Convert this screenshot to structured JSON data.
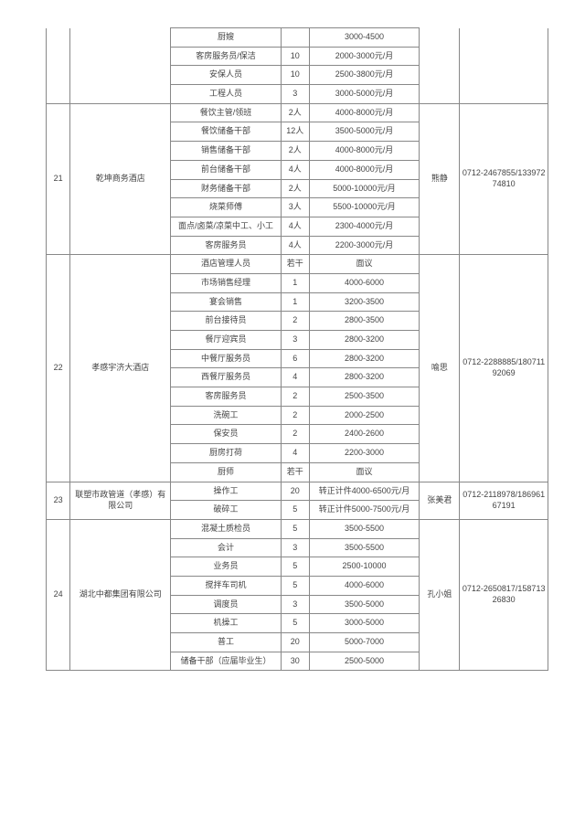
{
  "groups": [
    {
      "idx": "",
      "company": "",
      "contact": "",
      "phone": "",
      "idx_open_top": true,
      "company_open_top": true,
      "contact_open_top": true,
      "phone_open_top": true,
      "rows": [
        {
          "pos": "厨嫂",
          "qty": "",
          "salary": "3000-4500"
        },
        {
          "pos": "客房服务员/保洁",
          "qty": "10",
          "salary": "2000-3000元/月"
        },
        {
          "pos": "安保人员",
          "qty": "10",
          "salary": "2500-3800元/月"
        },
        {
          "pos": "工程人员",
          "qty": "3",
          "salary": "3000-5000元/月"
        }
      ]
    },
    {
      "idx": "21",
      "company": "乾坤商务酒店",
      "contact": "熊静",
      "phone": "0712-2467855/13397274810",
      "rows": [
        {
          "pos": "餐饮主管/领班",
          "qty": "2人",
          "salary": "4000-8000元/月"
        },
        {
          "pos": "餐饮储备干部",
          "qty": "12人",
          "salary": "3500-5000元/月"
        },
        {
          "pos": "销售储备干部",
          "qty": "2人",
          "salary": "4000-8000元/月"
        },
        {
          "pos": "前台储备干部",
          "qty": "4人",
          "salary": "4000-8000元/月"
        },
        {
          "pos": "财务储备干部",
          "qty": "2人",
          "salary": "5000-10000元/月"
        },
        {
          "pos": "烧菜师傅",
          "qty": "3人",
          "salary": "5500-10000元/月"
        },
        {
          "pos": "面点/卤菜/凉菜中工、小工",
          "qty": "4人",
          "salary": "2300-4000元/月"
        },
        {
          "pos": "客房服务员",
          "qty": "4人",
          "salary": "2200-3000元/月"
        }
      ]
    },
    {
      "idx": "22",
      "company": "孝感宇济大酒店",
      "contact": "喻思",
      "phone": "0712-2288885/18071192069",
      "rows": [
        {
          "pos": "酒店管理人员",
          "qty": "若干",
          "salary": "面议"
        },
        {
          "pos": "市场销售经理",
          "qty": "1",
          "salary": "4000-6000"
        },
        {
          "pos": "宴会销售",
          "qty": "1",
          "salary": "3200-3500"
        },
        {
          "pos": "前台接待员",
          "qty": "2",
          "salary": "2800-3500"
        },
        {
          "pos": "餐厅迎宾员",
          "qty": "3",
          "salary": "2800-3200"
        },
        {
          "pos": "中餐厅服务员",
          "qty": "6",
          "salary": "2800-3200"
        },
        {
          "pos": "西餐厅服务员",
          "qty": "4",
          "salary": "2800-3200"
        },
        {
          "pos": "客房服务员",
          "qty": "2",
          "salary": "2500-3500"
        },
        {
          "pos": "洗碗工",
          "qty": "2",
          "salary": "2000-2500"
        },
        {
          "pos": "保安员",
          "qty": "2",
          "salary": "2400-2600"
        },
        {
          "pos": "厨房打荷",
          "qty": "4",
          "salary": "2200-3000"
        },
        {
          "pos": "厨师",
          "qty": "若干",
          "salary": "面议"
        }
      ]
    },
    {
      "idx": "23",
      "company": "联塑市政管道（孝感）有限公司",
      "contact": "张美君",
      "phone": "0712-2118978/18696167191",
      "rows": [
        {
          "pos": "操作工",
          "qty": "20",
          "salary": "转正计件4000-6500元/月"
        },
        {
          "pos": "破碎工",
          "qty": "5",
          "salary": "转正计件5000-7500元/月"
        }
      ]
    },
    {
      "idx": "24",
      "company": "湖北中都集团有限公司",
      "contact": "孔小姐",
      "phone": "0712-2650817/15871326830",
      "rows": [
        {
          "pos": "混凝土质检员",
          "qty": "5",
          "salary": "3500-5500"
        },
        {
          "pos": "会计",
          "qty": "3",
          "salary": "3500-5500"
        },
        {
          "pos": "业务员",
          "qty": "5",
          "salary": "2500-10000"
        },
        {
          "pos": "搅拌车司机",
          "qty": "5",
          "salary": "4000-6000"
        },
        {
          "pos": "调度员",
          "qty": "3",
          "salary": "3500-5000"
        },
        {
          "pos": "机操工",
          "qty": "5",
          "salary": "3000-5000"
        },
        {
          "pos": "普工",
          "qty": "20",
          "salary": "5000-7000"
        },
        {
          "pos": "储备干部（应届毕业生）",
          "qty": "30",
          "salary": "2500-5000"
        }
      ]
    }
  ]
}
